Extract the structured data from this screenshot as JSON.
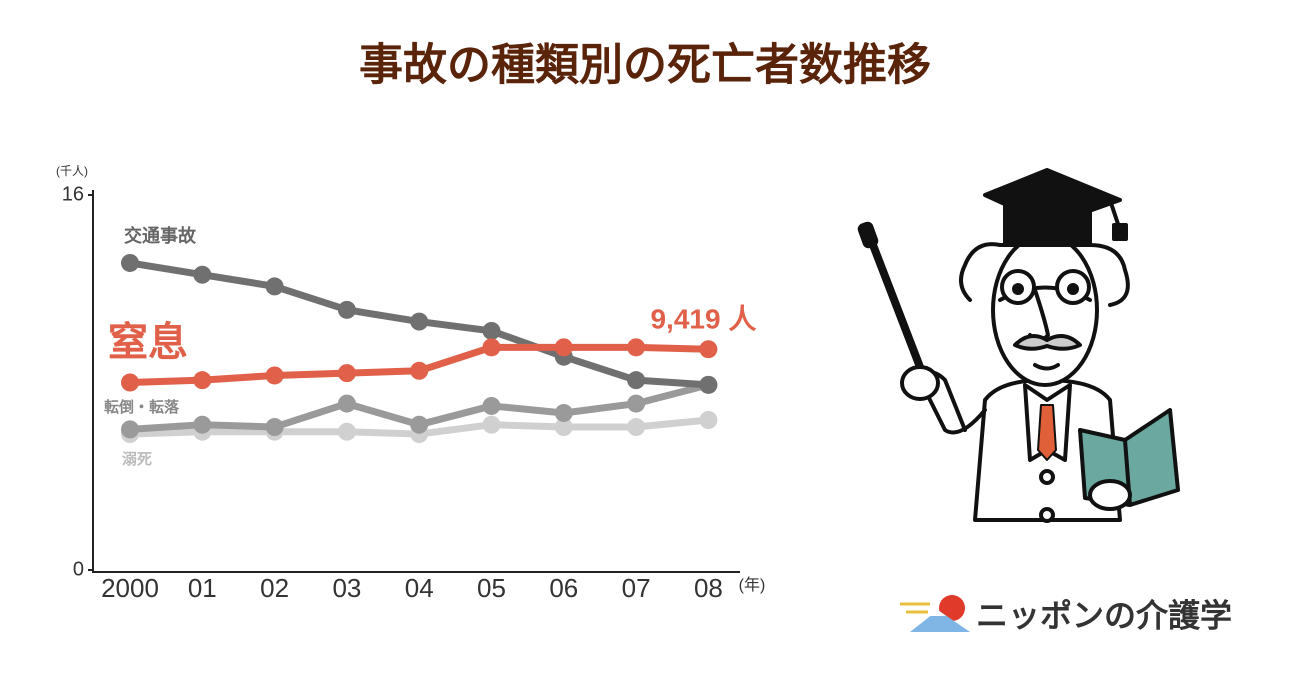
{
  "chart_data": {
    "type": "line",
    "title": "事故の種類別の死亡者数推移",
    "y_unit_label": "(千人)",
    "x_unit_label": "(年)",
    "categories": [
      "2000",
      "01",
      "02",
      "03",
      "04",
      "05",
      "06",
      "07",
      "08"
    ],
    "ylim": [
      0,
      16
    ],
    "yticks": [
      0,
      16
    ],
    "grid": false,
    "series": [
      {
        "name": "交通事故",
        "color": "#707070",
        "values": [
          13.1,
          12.6,
          12.1,
          11.1,
          10.6,
          10.2,
          9.1,
          8.1,
          7.9
        ]
      },
      {
        "name": "窒息",
        "color": "#e0604a",
        "values": [
          8.0,
          8.1,
          8.3,
          8.4,
          8.5,
          9.5,
          9.5,
          9.5,
          9.419
        ],
        "value_labels": [
          null,
          null,
          null,
          null,
          null,
          null,
          null,
          null,
          "9,419 人"
        ]
      },
      {
        "name": "転倒・転落",
        "color": "#9a9a9a",
        "values": [
          6.0,
          6.2,
          6.1,
          7.1,
          6.2,
          7.0,
          6.7,
          7.1,
          7.9
        ]
      },
      {
        "name": "溺死",
        "color": "#d0d0d0",
        "values": [
          5.8,
          5.9,
          5.9,
          5.9,
          5.8,
          6.2,
          6.1,
          6.1,
          6.4
        ]
      }
    ]
  },
  "logo": "ニッポンの介護学"
}
